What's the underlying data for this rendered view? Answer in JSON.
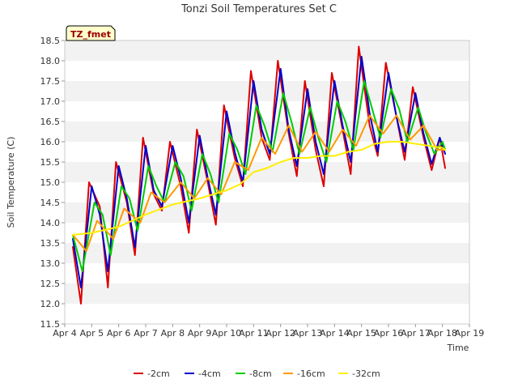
{
  "chart_data": {
    "type": "line",
    "title": "Tonzi Soil Temperatures Set C",
    "xlabel": "Time",
    "ylabel": "Soil Temperature (C)",
    "annotation": "TZ_fmet",
    "xlim": [
      4,
      19
    ],
    "ylim": [
      11.5,
      18.5
    ],
    "x_ticks": [
      {
        "value": 4,
        "label": "Apr 4"
      },
      {
        "value": 5,
        "label": "Apr 5"
      },
      {
        "value": 6,
        "label": "Apr 6"
      },
      {
        "value": 7,
        "label": "Apr 7"
      },
      {
        "value": 8,
        "label": "Apr 8"
      },
      {
        "value": 9,
        "label": "Apr 9"
      },
      {
        "value": 10,
        "label": "Apr 10"
      },
      {
        "value": 11,
        "label": "Apr 11"
      },
      {
        "value": 12,
        "label": "Apr 12"
      },
      {
        "value": 13,
        "label": "Apr 13"
      },
      {
        "value": 14,
        "label": "Apr 14"
      },
      {
        "value": 15,
        "label": "Apr 15"
      },
      {
        "value": 16,
        "label": "Apr 16"
      },
      {
        "value": 17,
        "label": "Apr 17"
      },
      {
        "value": 18,
        "label": "Apr 18"
      },
      {
        "value": 19,
        "label": "Apr 19"
      }
    ],
    "y_ticks": [
      "11.5",
      "12.0",
      "12.5",
      "13.0",
      "13.5",
      "14.0",
      "14.5",
      "15.0",
      "15.5",
      "16.0",
      "16.5",
      "17.0",
      "17.5",
      "18.0",
      "18.5"
    ],
    "legend_position": "bottom",
    "grid": "alternating horizontal bands",
    "series": [
      {
        "name": "-2cm",
        "color": "#dd0000",
        "points": [
          [
            4.3,
            13.4
          ],
          [
            4.6,
            12.0
          ],
          [
            4.9,
            15.0
          ],
          [
            5.3,
            14.4
          ],
          [
            5.6,
            12.4
          ],
          [
            5.9,
            15.5
          ],
          [
            6.3,
            14.5
          ],
          [
            6.6,
            13.2
          ],
          [
            6.9,
            16.1
          ],
          [
            7.3,
            14.7
          ],
          [
            7.6,
            14.3
          ],
          [
            7.9,
            16.0
          ],
          [
            8.3,
            14.9
          ],
          [
            8.6,
            13.75
          ],
          [
            8.9,
            16.3
          ],
          [
            9.3,
            15.0
          ],
          [
            9.6,
            13.95
          ],
          [
            9.9,
            16.9
          ],
          [
            10.3,
            15.6
          ],
          [
            10.6,
            14.9
          ],
          [
            10.9,
            17.75
          ],
          [
            11.3,
            16.1
          ],
          [
            11.6,
            15.55
          ],
          [
            11.9,
            18.0
          ],
          [
            12.3,
            16.2
          ],
          [
            12.6,
            15.15
          ],
          [
            12.9,
            17.5
          ],
          [
            13.3,
            15.8
          ],
          [
            13.6,
            14.9
          ],
          [
            13.9,
            17.7
          ],
          [
            14.3,
            16.3
          ],
          [
            14.6,
            15.2
          ],
          [
            14.9,
            18.35
          ],
          [
            15.3,
            16.4
          ],
          [
            15.6,
            15.65
          ],
          [
            15.9,
            17.95
          ],
          [
            16.3,
            16.6
          ],
          [
            16.6,
            15.55
          ],
          [
            16.9,
            17.35
          ],
          [
            17.3,
            16.1
          ],
          [
            17.6,
            15.3
          ],
          [
            17.9,
            16.1
          ],
          [
            18.1,
            15.35
          ]
        ]
      },
      {
        "name": "-4cm",
        "color": "#0000cc",
        "points": [
          [
            4.3,
            13.6
          ],
          [
            4.6,
            12.4
          ],
          [
            5.0,
            14.9
          ],
          [
            5.3,
            14.2
          ],
          [
            5.6,
            12.8
          ],
          [
            6.0,
            15.4
          ],
          [
            6.3,
            14.6
          ],
          [
            6.6,
            13.4
          ],
          [
            7.0,
            15.9
          ],
          [
            7.3,
            14.8
          ],
          [
            7.6,
            14.4
          ],
          [
            8.0,
            15.9
          ],
          [
            8.3,
            15.1
          ],
          [
            8.6,
            14.0
          ],
          [
            9.0,
            16.15
          ],
          [
            9.3,
            15.1
          ],
          [
            9.6,
            14.2
          ],
          [
            10.0,
            16.75
          ],
          [
            10.3,
            15.75
          ],
          [
            10.6,
            15.0
          ],
          [
            11.0,
            17.5
          ],
          [
            11.3,
            16.3
          ],
          [
            11.6,
            15.7
          ],
          [
            12.0,
            17.8
          ],
          [
            12.3,
            16.3
          ],
          [
            12.6,
            15.4
          ],
          [
            13.0,
            17.3
          ],
          [
            13.3,
            16.0
          ],
          [
            13.6,
            15.2
          ],
          [
            14.0,
            17.5
          ],
          [
            14.3,
            16.4
          ],
          [
            14.6,
            15.5
          ],
          [
            15.0,
            18.1
          ],
          [
            15.3,
            16.7
          ],
          [
            15.6,
            15.75
          ],
          [
            16.0,
            17.7
          ],
          [
            16.3,
            16.6
          ],
          [
            16.6,
            15.75
          ],
          [
            17.0,
            17.2
          ],
          [
            17.3,
            16.2
          ],
          [
            17.6,
            15.45
          ],
          [
            17.9,
            16.1
          ],
          [
            18.1,
            15.7
          ]
        ]
      },
      {
        "name": "-8cm",
        "color": "#00cc00",
        "points": [
          [
            4.3,
            13.7
          ],
          [
            4.65,
            12.8
          ],
          [
            5.1,
            14.5
          ],
          [
            5.4,
            14.2
          ],
          [
            5.7,
            13.2
          ],
          [
            6.1,
            14.9
          ],
          [
            6.4,
            14.6
          ],
          [
            6.7,
            13.8
          ],
          [
            7.1,
            15.4
          ],
          [
            7.4,
            14.9
          ],
          [
            7.7,
            14.5
          ],
          [
            8.1,
            15.5
          ],
          [
            8.4,
            15.15
          ],
          [
            8.7,
            14.3
          ],
          [
            9.1,
            15.7
          ],
          [
            9.4,
            15.2
          ],
          [
            9.7,
            14.5
          ],
          [
            10.1,
            16.2
          ],
          [
            10.4,
            15.8
          ],
          [
            10.7,
            15.2
          ],
          [
            11.1,
            16.9
          ],
          [
            11.4,
            16.4
          ],
          [
            11.7,
            15.75
          ],
          [
            12.1,
            17.2
          ],
          [
            12.4,
            16.5
          ],
          [
            12.7,
            15.7
          ],
          [
            13.1,
            16.85
          ],
          [
            13.4,
            16.1
          ],
          [
            13.7,
            15.5
          ],
          [
            14.1,
            17.0
          ],
          [
            14.4,
            16.5
          ],
          [
            14.7,
            15.8
          ],
          [
            15.1,
            17.5
          ],
          [
            15.4,
            16.8
          ],
          [
            15.7,
            16.1
          ],
          [
            16.1,
            17.3
          ],
          [
            16.4,
            16.8
          ],
          [
            16.7,
            16.0
          ],
          [
            17.1,
            16.85
          ],
          [
            17.4,
            16.2
          ],
          [
            17.7,
            15.7
          ],
          [
            18.0,
            16.0
          ],
          [
            18.1,
            15.8
          ]
        ]
      },
      {
        "name": "-16cm",
        "color": "#ff9900",
        "points": [
          [
            4.3,
            13.7
          ],
          [
            4.8,
            13.3
          ],
          [
            5.2,
            14.05
          ],
          [
            5.8,
            13.6
          ],
          [
            6.2,
            14.35
          ],
          [
            6.8,
            14.0
          ],
          [
            7.2,
            14.75
          ],
          [
            7.7,
            14.5
          ],
          [
            8.3,
            15.0
          ],
          [
            8.8,
            14.6
          ],
          [
            9.3,
            15.1
          ],
          [
            9.8,
            14.7
          ],
          [
            10.3,
            15.5
          ],
          [
            10.8,
            15.3
          ],
          [
            11.3,
            16.1
          ],
          [
            11.8,
            15.7
          ],
          [
            12.3,
            16.4
          ],
          [
            12.8,
            15.75
          ],
          [
            13.3,
            16.25
          ],
          [
            13.8,
            15.75
          ],
          [
            14.3,
            16.3
          ],
          [
            14.8,
            15.9
          ],
          [
            15.3,
            16.65
          ],
          [
            15.8,
            16.2
          ],
          [
            16.3,
            16.65
          ],
          [
            16.8,
            16.05
          ],
          [
            17.3,
            16.4
          ],
          [
            17.8,
            15.8
          ],
          [
            18.1,
            15.8
          ]
        ]
      },
      {
        "name": "-32cm",
        "color": "#ffee00",
        "points": [
          [
            4.3,
            13.7
          ],
          [
            5.0,
            13.75
          ],
          [
            6.0,
            13.9
          ],
          [
            7.0,
            14.2
          ],
          [
            8.0,
            14.45
          ],
          [
            9.0,
            14.6
          ],
          [
            10.0,
            14.8
          ],
          [
            10.5,
            14.95
          ],
          [
            11.0,
            15.25
          ],
          [
            11.5,
            15.35
          ],
          [
            12.0,
            15.5
          ],
          [
            12.5,
            15.6
          ],
          [
            13.0,
            15.6
          ],
          [
            13.5,
            15.65
          ],
          [
            14.0,
            15.65
          ],
          [
            14.5,
            15.75
          ],
          [
            15.0,
            15.8
          ],
          [
            15.5,
            15.95
          ],
          [
            16.0,
            16.0
          ],
          [
            16.5,
            16.0
          ],
          [
            17.0,
            15.95
          ],
          [
            17.5,
            15.9
          ],
          [
            18.0,
            15.85
          ],
          [
            18.1,
            15.8
          ]
        ]
      }
    ]
  }
}
